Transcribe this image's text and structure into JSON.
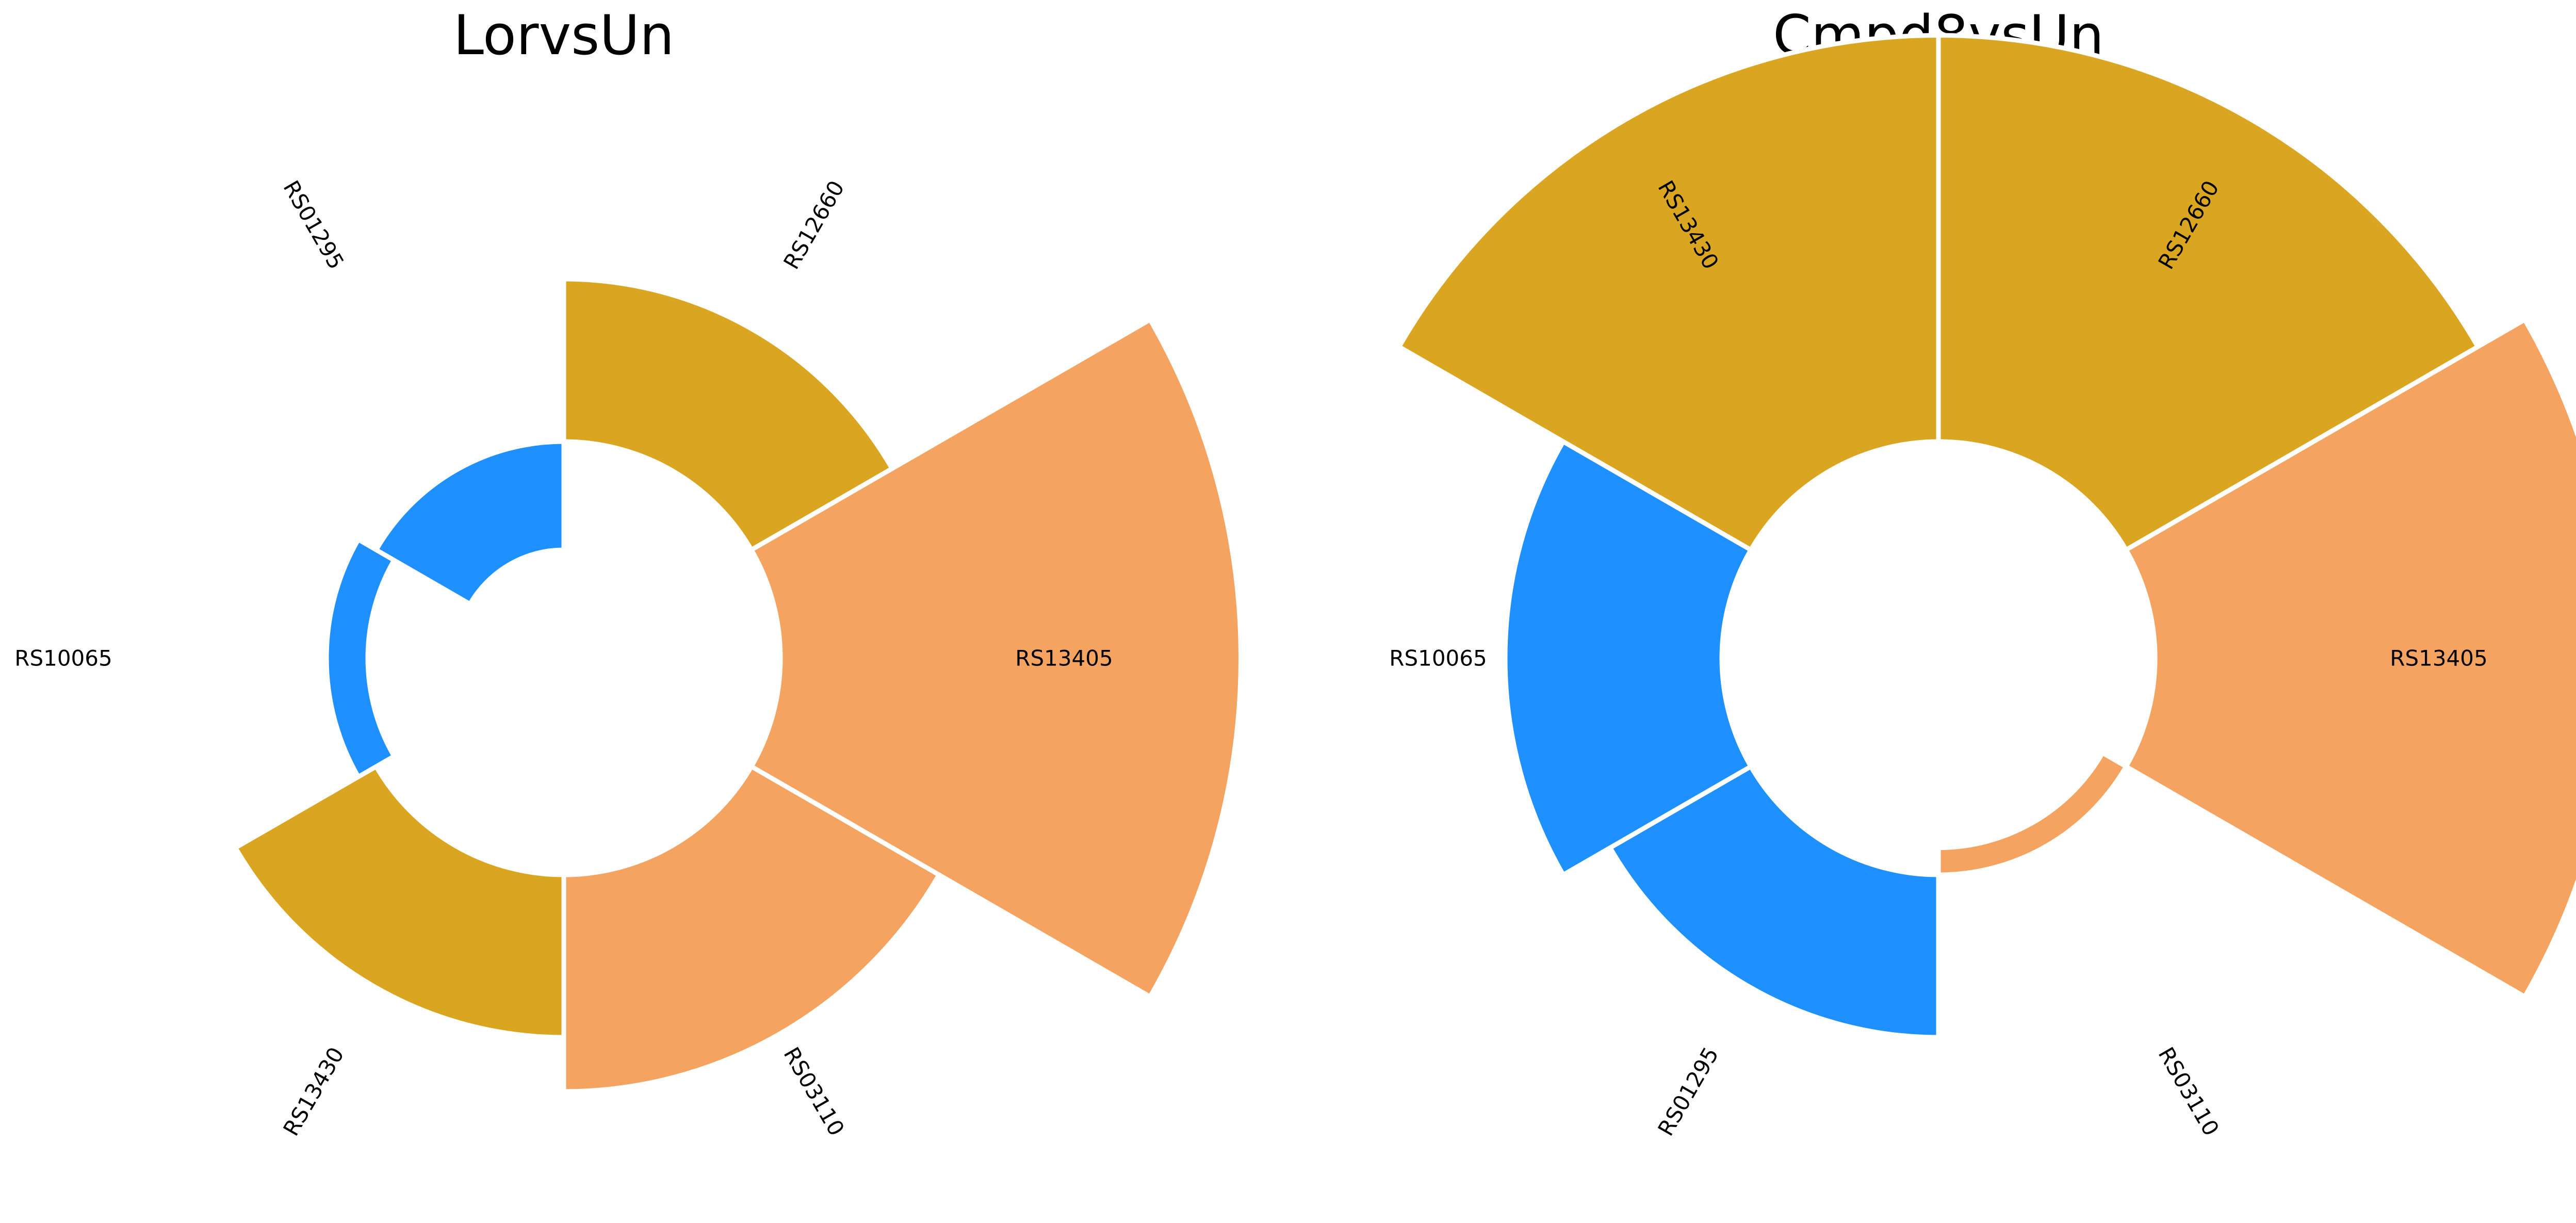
{
  "chart_data": [
    {
      "type": "circular-bar",
      "title": "LorvsUn",
      "bars": [
        {
          "label": "RS12660",
          "value": 0.3,
          "color": "#DAA520"
        },
        {
          "label": "RS13405",
          "value": 0.85,
          "color": "#F4A460"
        },
        {
          "label": "RS03110",
          "value": 0.4,
          "color": "#F4A460"
        },
        {
          "label": "RS13430",
          "value": 0.3,
          "color": "#DAA520"
        },
        {
          "label": "RS10065",
          "value": 0.0,
          "color": "#1E90FF"
        },
        {
          "label": "RS01295",
          "value": -0.2,
          "color": "#1E90FF"
        }
      ]
    },
    {
      "type": "circular-bar",
      "title": "Cmpd8vsUn",
      "bars": [
        {
          "label": "RS12660",
          "value": 0.75,
          "color": "#DAA520"
        },
        {
          "label": "RS13405",
          "value": 0.85,
          "color": "#F4A460"
        },
        {
          "label": "RS03110",
          "value": -0.05,
          "color": "#F4A460"
        },
        {
          "label": "RS01295",
          "value": 0.3,
          "color": "#1E90FF"
        },
        {
          "label": "RS10065",
          "value": 0.4,
          "color": "#1E90FF"
        },
        {
          "label": "RS13430",
          "value": 0.75,
          "color": "#DAA520"
        }
      ]
    }
  ]
}
